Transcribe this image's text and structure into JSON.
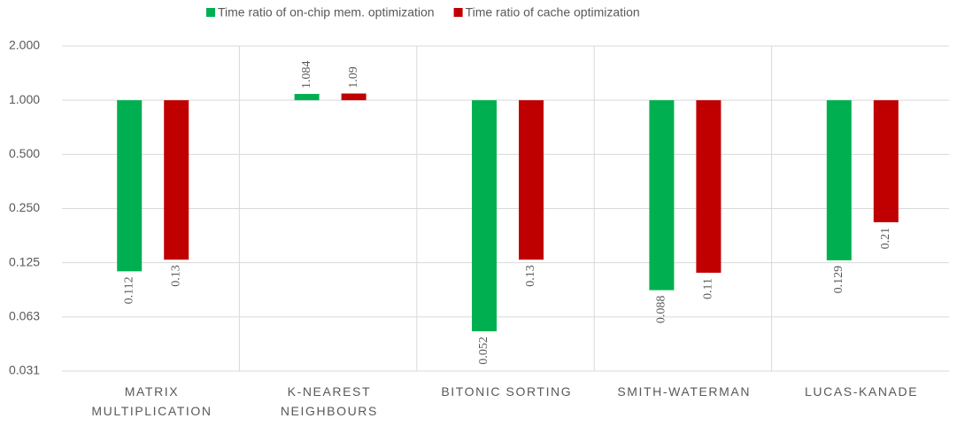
{
  "chart_data": {
    "type": "bar",
    "categories": [
      "MATRIX\nMULTIPLICATION",
      "K-NEAREST\nNEIGHBOURS",
      "BITONIC SORTING",
      "SMITH-WATERMAN",
      "LUCAS-KANADE"
    ],
    "series": [
      {
        "name": "Time ratio of on-chip mem. optimization",
        "color": "#00b050",
        "values": [
          0.112,
          1.084,
          0.052,
          0.088,
          0.129
        ]
      },
      {
        "name": "Time ratio of cache optimization",
        "color": "#c00000",
        "values": [
          0.13,
          1.09,
          0.13,
          0.11,
          0.21
        ]
      }
    ],
    "yscale": "log2",
    "ylim": [
      0.03125,
      2
    ],
    "yticks": [
      {
        "value": 0.03125,
        "label": "0.031"
      },
      {
        "value": 0.0625,
        "label": "0.063"
      },
      {
        "value": 0.125,
        "label": "0.125"
      },
      {
        "value": 0.25,
        "label": "0.250"
      },
      {
        "value": 0.5,
        "label": "0.500"
      },
      {
        "value": 1,
        "label": "1.000"
      },
      {
        "value": 2,
        "label": "2.000"
      }
    ],
    "grid": true,
    "legend": "top"
  }
}
